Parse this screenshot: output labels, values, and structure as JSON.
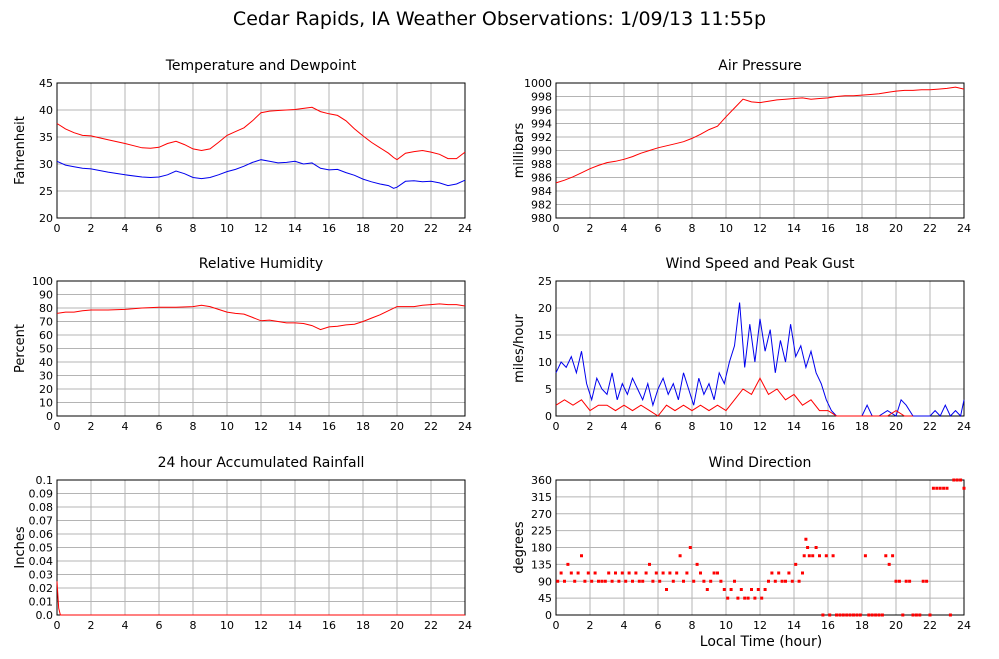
{
  "page": {
    "title": "Cedar Rapids, IA Weather Observations: 1/09/13 11:55p",
    "xlabel": "Local Time (hour)"
  },
  "colors": {
    "red": "#ff0000",
    "blue": "#0000ee",
    "grid": "#b4b4b4"
  },
  "chart_data": [
    {
      "type": "line",
      "title": "Temperature and Dewpoint",
      "ylabel": "Fahrenheit",
      "xlim": [
        0,
        24
      ],
      "ylim": [
        20,
        45
      ],
      "xticks": [
        0,
        2,
        4,
        6,
        8,
        10,
        12,
        14,
        16,
        18,
        20,
        22,
        24
      ],
      "yticks": [
        20,
        25,
        30,
        35,
        40,
        45
      ],
      "series": [
        {
          "color": "red",
          "x": [
            0,
            0.5,
            1,
            1.5,
            2,
            3,
            4,
            5,
            5.5,
            6,
            6.5,
            7,
            7.5,
            8,
            8.5,
            9,
            9.5,
            10,
            10.5,
            11,
            11.5,
            12,
            12.5,
            13,
            13.5,
            14,
            14.5,
            15,
            15.5,
            16,
            16.5,
            17,
            17.5,
            18,
            18.5,
            19,
            19.5,
            19.8,
            20,
            20.5,
            21,
            21.5,
            22,
            22.5,
            23,
            23.5,
            24
          ],
          "y": [
            37.5,
            36.5,
            35.8,
            35.3,
            35.2,
            34.5,
            33.8,
            33,
            32.9,
            33.1,
            33.8,
            34.2,
            33.6,
            32.8,
            32.5,
            32.8,
            34,
            35.3,
            36,
            36.7,
            38,
            39.5,
            39.8,
            39.9,
            40,
            40.1,
            40.3,
            40.5,
            39.7,
            39.3,
            39,
            38,
            36.5,
            35.2,
            34,
            33,
            32,
            31.2,
            30.8,
            32,
            32.3,
            32.5,
            32.2,
            31.8,
            31,
            31,
            32.2
          ]
        },
        {
          "color": "blue",
          "x": [
            0,
            0.5,
            1,
            1.5,
            2,
            3,
            4,
            5,
            5.5,
            6,
            6.5,
            7,
            7.5,
            8,
            8.5,
            9,
            9.5,
            10,
            10.5,
            11,
            11.5,
            12,
            12.5,
            13,
            13.5,
            14,
            14.5,
            15,
            15.5,
            16,
            16.5,
            17,
            17.5,
            18,
            18.5,
            19,
            19.5,
            19.8,
            20,
            20.5,
            21,
            21.5,
            22,
            22.5,
            23,
            23.5,
            24
          ],
          "y": [
            30.5,
            29.8,
            29.5,
            29.2,
            29.1,
            28.5,
            28,
            27.6,
            27.5,
            27.6,
            28,
            28.7,
            28.2,
            27.5,
            27.3,
            27.5,
            28,
            28.6,
            29,
            29.6,
            30.3,
            30.8,
            30.5,
            30.2,
            30.3,
            30.5,
            30,
            30.2,
            29.2,
            28.9,
            29,
            28.4,
            27.9,
            27.2,
            26.7,
            26.3,
            26,
            25.5,
            25.7,
            26.8,
            26.9,
            26.7,
            26.8,
            26.5,
            26,
            26.3,
            27
          ]
        }
      ]
    },
    {
      "type": "line",
      "title": "Air Pressure",
      "ylabel": "millibars",
      "xlim": [
        0,
        24
      ],
      "ylim": [
        980,
        1000
      ],
      "xticks": [
        0,
        2,
        4,
        6,
        8,
        10,
        12,
        14,
        16,
        18,
        20,
        22,
        24
      ],
      "yticks": [
        980,
        982,
        984,
        986,
        988,
        990,
        992,
        994,
        996,
        998,
        1000
      ],
      "series": [
        {
          "color": "red",
          "x": [
            0,
            0.5,
            1,
            1.5,
            2,
            2.5,
            3,
            3.5,
            4,
            4.5,
            5,
            5.5,
            6,
            6.5,
            7,
            7.5,
            8,
            8.5,
            9,
            9.5,
            10,
            10.5,
            11,
            11.5,
            12,
            12.5,
            13,
            13.5,
            14,
            14.5,
            15,
            15.5,
            16,
            16.5,
            17,
            17.5,
            18,
            18.5,
            19,
            19.5,
            20,
            20.5,
            21,
            21.5,
            22,
            22.5,
            23,
            23.5,
            24
          ],
          "y": [
            985.2,
            985.6,
            986.1,
            986.7,
            987.3,
            987.8,
            988.2,
            988.4,
            988.7,
            989.1,
            989.6,
            990,
            990.4,
            990.7,
            991,
            991.3,
            991.8,
            992.4,
            993.1,
            993.6,
            995,
            996.3,
            997.6,
            997.2,
            997.1,
            997.3,
            997.5,
            997.6,
            997.7,
            997.8,
            997.6,
            997.7,
            997.8,
            998,
            998.1,
            998.1,
            998.2,
            998.3,
            998.4,
            998.6,
            998.8,
            998.9,
            998.9,
            999,
            999,
            999.1,
            999.2,
            999.4,
            999.1
          ]
        }
      ]
    },
    {
      "type": "line",
      "title": "Relative Humidity",
      "ylabel": "Percent",
      "xlim": [
        0,
        24
      ],
      "ylim": [
        0,
        100
      ],
      "xticks": [
        0,
        2,
        4,
        6,
        8,
        10,
        12,
        14,
        16,
        18,
        20,
        22,
        24
      ],
      "yticks": [
        0,
        10,
        20,
        30,
        40,
        50,
        60,
        70,
        80,
        90,
        100
      ],
      "series": [
        {
          "color": "red",
          "x": [
            0,
            0.5,
            1,
            1.5,
            2,
            3,
            4,
            5,
            6,
            7,
            8,
            8.5,
            9,
            9.5,
            10,
            10.5,
            11,
            11.5,
            12,
            12.5,
            13,
            13.5,
            14,
            14.5,
            15,
            15.5,
            16,
            16.5,
            17,
            17.5,
            18,
            18.5,
            19,
            19.5,
            20,
            20.5,
            21,
            21.5,
            22,
            22.5,
            23,
            23.5,
            24
          ],
          "y": [
            76,
            77,
            77,
            78,
            78.5,
            78.5,
            79,
            80,
            80.5,
            80.5,
            81,
            82,
            81,
            79,
            77,
            76,
            75.5,
            73,
            70.5,
            71,
            70,
            69,
            69,
            68.5,
            67,
            64,
            66,
            66.5,
            67.5,
            68,
            70,
            72.5,
            75,
            78,
            81,
            81,
            81,
            82,
            82.5,
            83,
            82.5,
            82.5,
            81.5
          ]
        }
      ]
    },
    {
      "type": "line",
      "title": "Wind Speed and Peak Gust",
      "ylabel": "miles/hour",
      "xlim": [
        0,
        24
      ],
      "ylim": [
        0,
        25
      ],
      "xticks": [
        0,
        2,
        4,
        6,
        8,
        10,
        12,
        14,
        16,
        18,
        20,
        22,
        24
      ],
      "yticks": [
        0,
        5,
        10,
        15,
        20,
        25
      ],
      "series": [
        {
          "color": "blue",
          "x": [
            0,
            0.3,
            0.6,
            0.9,
            1.2,
            1.5,
            1.8,
            2.1,
            2.4,
            2.7,
            3,
            3.3,
            3.6,
            3.9,
            4.2,
            4.5,
            4.8,
            5.1,
            5.4,
            5.7,
            6,
            6.3,
            6.6,
            6.9,
            7.2,
            7.5,
            7.8,
            8.1,
            8.4,
            8.7,
            9,
            9.3,
            9.6,
            9.9,
            10.2,
            10.5,
            10.8,
            11.1,
            11.4,
            11.7,
            12,
            12.3,
            12.6,
            12.9,
            13.2,
            13.5,
            13.8,
            14.1,
            14.4,
            14.7,
            15,
            15.3,
            15.6,
            15.9,
            16.2,
            16.5,
            17,
            17.5,
            18,
            18.3,
            18.6,
            19,
            19.5,
            20,
            20.3,
            20.6,
            21,
            21.5,
            22,
            22.3,
            22.6,
            22.9,
            23.2,
            23.5,
            23.8,
            24
          ],
          "y": [
            8,
            10,
            9,
            11,
            8,
            12,
            6,
            3,
            7,
            5,
            4,
            8,
            3,
            6,
            4,
            7,
            5,
            3,
            6,
            2,
            5,
            7,
            4,
            6,
            3,
            8,
            5,
            2,
            7,
            4,
            6,
            3,
            8,
            6,
            10,
            13,
            21,
            9,
            17,
            10,
            18,
            12,
            16,
            8,
            14,
            10,
            17,
            11,
            13,
            9,
            12,
            8,
            6,
            3,
            1,
            0,
            0,
            0,
            0,
            2,
            0,
            0,
            1,
            0,
            3,
            2,
            0,
            0,
            0,
            1,
            0,
            2,
            0,
            1,
            0,
            3
          ]
        },
        {
          "color": "red",
          "x": [
            0,
            0.5,
            1,
            1.5,
            2,
            2.5,
            3,
            3.5,
            4,
            4.5,
            5,
            5.5,
            6,
            6.5,
            7,
            7.5,
            8,
            8.5,
            9,
            9.5,
            10,
            10.5,
            11,
            11.5,
            12,
            12.5,
            13,
            13.5,
            14,
            14.5,
            15,
            15.5,
            16,
            16.5,
            17,
            17.5,
            18,
            18.5,
            19,
            19.5,
            20,
            20.5,
            21
          ],
          "y": [
            2,
            3,
            2,
            3,
            1,
            2,
            2,
            1,
            2,
            1,
            2,
            1,
            0,
            2,
            1,
            2,
            1,
            2,
            1,
            2,
            1,
            3,
            5,
            4,
            7,
            4,
            5,
            3,
            4,
            2,
            3,
            1,
            1,
            0,
            0,
            0,
            0,
            0,
            0,
            0,
            1,
            0,
            0
          ]
        }
      ]
    },
    {
      "type": "line",
      "title": "24 hour Accumulated Rainfall",
      "ylabel": "Inches",
      "xlim": [
        0,
        24
      ],
      "ylim": [
        0,
        0.1
      ],
      "xticks": [
        0,
        2,
        4,
        6,
        8,
        10,
        12,
        14,
        16,
        18,
        20,
        22,
        24
      ],
      "yticks": [
        0.0,
        0.01,
        0.02,
        0.03,
        0.04,
        0.05,
        0.06,
        0.07,
        0.08,
        0.09,
        0.1
      ],
      "ytick_labels": [
        "0.0",
        "0.01",
        "0.02",
        "0.03",
        "0.04",
        "0.05",
        "0.06",
        "0.07",
        "0.08",
        "0.09",
        "0.1"
      ],
      "series": [
        {
          "color": "red",
          "x": [
            0,
            0.1,
            0.2,
            24
          ],
          "y": [
            0.025,
            0.005,
            0,
            0
          ]
        }
      ]
    },
    {
      "type": "scatter",
      "title": "Wind Direction",
      "ylabel": "degrees",
      "xlim": [
        0,
        24
      ],
      "ylim": [
        0,
        360
      ],
      "xticks": [
        0,
        2,
        4,
        6,
        8,
        10,
        12,
        14,
        16,
        18,
        20,
        22,
        24
      ],
      "yticks": [
        0,
        45,
        90,
        135,
        180,
        225,
        270,
        315,
        360
      ],
      "series": [
        {
          "color": "red",
          "x": [
            0.1,
            0.3,
            0.5,
            0.7,
            0.9,
            1.1,
            1.3,
            1.5,
            1.7,
            1.9,
            2.1,
            2.3,
            2.5,
            2.7,
            2.9,
            3.1,
            3.3,
            3.5,
            3.7,
            3.9,
            4.1,
            4.3,
            4.5,
            4.7,
            4.9,
            5.1,
            5.3,
            5.5,
            5.7,
            5.9,
            6.1,
            6.3,
            6.5,
            6.7,
            6.9,
            7.1,
            7.3,
            7.5,
            7.7,
            7.9,
            8.1,
            8.3,
            8.5,
            8.7,
            8.9,
            9.1,
            9.3,
            9.5,
            9.7,
            9.9,
            10.1,
            10.3,
            10.5,
            10.7,
            10.9,
            11.1,
            11.3,
            11.5,
            11.7,
            11.9,
            12.1,
            12.3,
            12.5,
            12.7,
            12.9,
            13.1,
            13.3,
            13.5,
            13.7,
            13.9,
            14.1,
            14.3,
            14.5,
            14.6,
            14.7,
            14.8,
            14.9,
            15.1,
            15.3,
            15.5,
            15.7,
            15.9,
            16.1,
            16.3,
            16.5,
            16.7,
            16.9,
            17.1,
            17.3,
            17.5,
            17.7,
            17.9,
            18.2,
            18.4,
            18.6,
            18.8,
            19,
            19.2,
            19.4,
            19.6,
            19.8,
            20,
            20.2,
            20.4,
            20.6,
            20.8,
            21,
            21.2,
            21.4,
            21.6,
            21.8,
            22,
            22.2,
            22.4,
            22.6,
            22.8,
            23,
            23.2,
            23.4,
            23.6,
            23.8,
            24
          ],
          "y": [
            90,
            112,
            90,
            135,
            112,
            90,
            112,
            158,
            90,
            112,
            90,
            112,
            90,
            90,
            90,
            112,
            90,
            112,
            90,
            112,
            90,
            112,
            90,
            112,
            90,
            90,
            112,
            135,
            90,
            112,
            90,
            112,
            68,
            112,
            90,
            112,
            158,
            90,
            112,
            180,
            90,
            135,
            112,
            90,
            68,
            90,
            112,
            112,
            90,
            68,
            45,
            68,
            90,
            45,
            68,
            45,
            45,
            68,
            45,
            68,
            45,
            68,
            90,
            112,
            90,
            112,
            90,
            90,
            112,
            90,
            135,
            90,
            112,
            158,
            202,
            180,
            158,
            158,
            180,
            158,
            0,
            158,
            0,
            158,
            0,
            0,
            0,
            0,
            0,
            0,
            0,
            0,
            158,
            0,
            0,
            0,
            0,
            0,
            158,
            135,
            158,
            90,
            90,
            0,
            90,
            90,
            0,
            0,
            0,
            90,
            90,
            0,
            338,
            338,
            338,
            338,
            338,
            0,
            360,
            360,
            360,
            338
          ]
        }
      ]
    }
  ]
}
